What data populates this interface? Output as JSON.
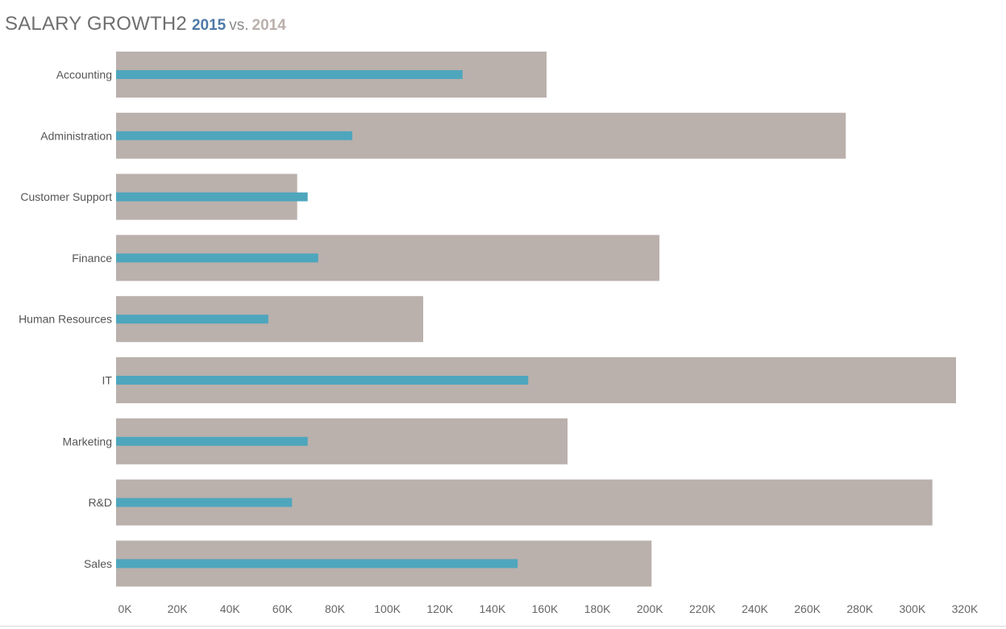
{
  "title": {
    "main": "SALARY GROWTH2",
    "current_year": "2015",
    "vs": "vs.",
    "previous_year": "2014"
  },
  "colors": {
    "current": "#4ea6bd",
    "previous": "#bab0ac",
    "title_current": "#4e79a7",
    "title_previous": "#bab0ac"
  },
  "chart_data": {
    "type": "bar",
    "orientation": "horizontal",
    "title": "SALARY GROWTH2 2015 vs. 2014",
    "xlabel": "",
    "ylabel": "",
    "xlim": [
      0,
      320000
    ],
    "grid": false,
    "categories": [
      "Accounting",
      "Administration",
      "Customer Support",
      "Finance",
      "Human Resources",
      "IT",
      "Marketing",
      "R&D",
      "Sales"
    ],
    "series": [
      {
        "name": "2014",
        "values": [
          164000,
          278000,
          69000,
          207000,
          117000,
          320000,
          172000,
          311000,
          204000
        ]
      },
      {
        "name": "2015",
        "values": [
          132000,
          90000,
          73000,
          77000,
          58000,
          157000,
          73000,
          67000,
          153000
        ]
      }
    ],
    "x_ticks": [
      0,
      20000,
      40000,
      60000,
      80000,
      100000,
      120000,
      140000,
      160000,
      180000,
      200000,
      220000,
      240000,
      260000,
      280000,
      300000,
      320000
    ],
    "x_tick_labels": [
      "0K",
      "20K",
      "40K",
      "60K",
      "80K",
      "100K",
      "120K",
      "140K",
      "160K",
      "180K",
      "200K",
      "220K",
      "240K",
      "260K",
      "280K",
      "300K",
      "320K"
    ]
  }
}
